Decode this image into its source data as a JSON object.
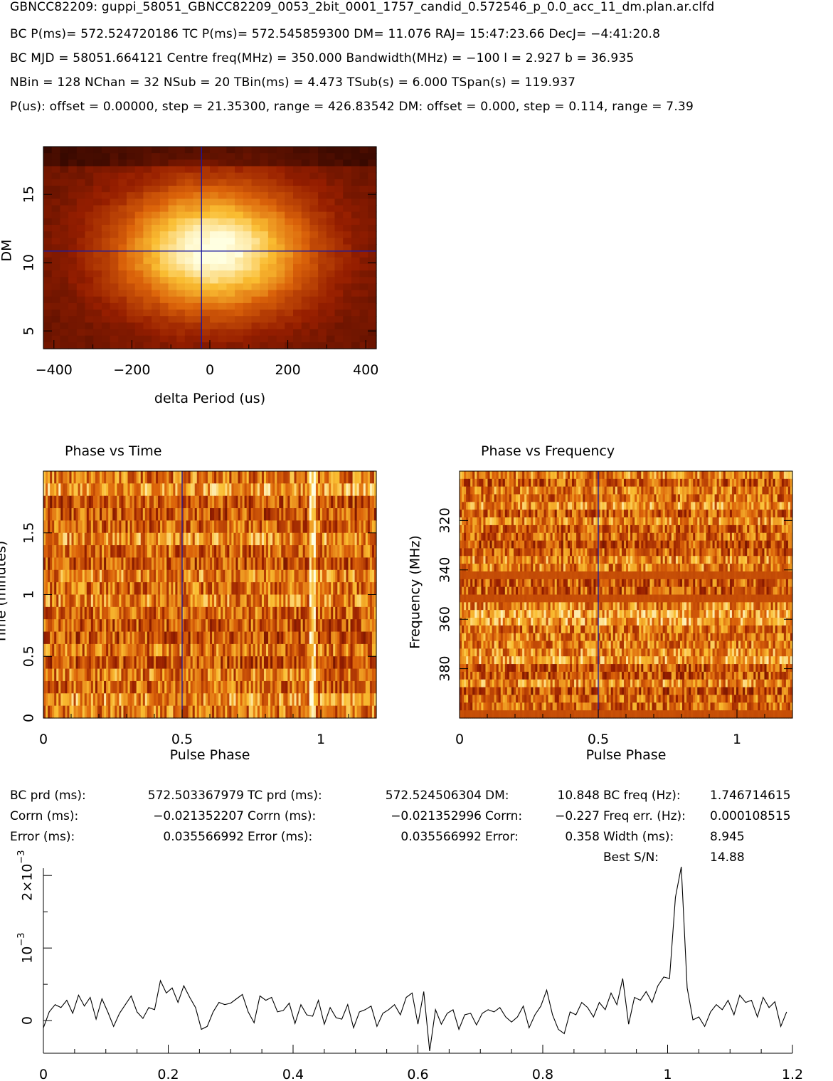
{
  "header": {
    "file": "GBNCC82209: guppi_58051_GBNCC82209_0053_2bit_0001_1757_candid_0.572546_p_0.0_acc_11_dm.plan.ar.clfd",
    "line1": "BC P(ms)= 572.524720186 TC P(ms)= 572.545859300 DM= 11.076 RAJ= 15:47:23.66 DecJ= −4:41:20.8",
    "line2": "BC MJD = 58051.664121 Centre freq(MHz) = 350.000 Bandwidth(MHz) = −100 l = 2.927 b = 36.935",
    "line3": "NBin = 128 NChan = 32 NSub = 20 TBin(ms) = 4.473 TSub(s) = 6.000 TSpan(s) = 119.937",
    "line4": "P(us): offset = 0.00000, step = 21.35300, range = 426.83542 DM: offset = 0.000, step = 0.114, range = 7.39"
  },
  "colors": {
    "heat_dark": "#3a0a00",
    "heat_mid": "#d2570a",
    "heat_bright": "#ffffe0",
    "crosshair": "#1a1aa0",
    "line": "#000000"
  },
  "stats": {
    "col1": [
      {
        "label": "BC prd (ms):",
        "value": "572.503367979"
      },
      {
        "label": "Corrn (ms):",
        "value": "−0.021352207"
      },
      {
        "label": "Error (ms):",
        "value": "0.035566992"
      }
    ],
    "col2": [
      {
        "label": "TC prd (ms):",
        "value": "572.524506304"
      },
      {
        "label": "Corrn (ms):",
        "value": "−0.021352996"
      },
      {
        "label": "Error (ms):",
        "value": "0.035566992"
      }
    ],
    "col3": [
      {
        "label": "DM:",
        "value": "10.848"
      },
      {
        "label": "Corrn:",
        "value": "−0.227"
      },
      {
        "label": "Error:",
        "value": "0.358"
      }
    ],
    "col4": [
      {
        "label": "BC freq (Hz):",
        "value": "1.746714615"
      },
      {
        "label": "Freq err. (Hz):",
        "value": "0.000108515"
      },
      {
        "label": "Width (ms):",
        "value": "8.945"
      },
      {
        "label": "Best S/N:",
        "value": "14.88"
      }
    ]
  },
  "chart_data": [
    {
      "type": "heatmap",
      "title": "",
      "xlabel": "delta Period (us)",
      "ylabel": "DM",
      "xlim": [
        -427,
        427
      ],
      "ylim": [
        3.7,
        18.5
      ],
      "xticks": [
        "−400",
        "−200",
        "0",
        "200",
        "400"
      ],
      "yticks": [
        "5",
        "10",
        "15"
      ],
      "crosshair": {
        "x": -21.4,
        "y": 10.85
      },
      "peak": {
        "x": 10,
        "y": 10.9
      }
    },
    {
      "type": "heatmap",
      "title": "Phase vs Time",
      "xlabel": "Pulse Phase",
      "ylabel": "Time (minutes)",
      "xlim": [
        0,
        1.2
      ],
      "ylim": [
        0,
        2
      ],
      "xticks": [
        "0",
        "0.5",
        "1"
      ],
      "yticks": [
        "0",
        "0.5",
        "1",
        "1.5"
      ],
      "marker_phase": 0.5,
      "pulse_phase": 0.97
    },
    {
      "type": "heatmap",
      "title": "Phase vs Frequency",
      "xlabel": "Pulse Phase",
      "ylabel": "Frequency (MHz)",
      "xlim": [
        0,
        1.2
      ],
      "ylim": [
        400,
        300
      ],
      "xticks": [
        "0",
        "0.5",
        "1"
      ],
      "yticks": [
        "320",
        "340",
        "360",
        "380"
      ],
      "marker_phase": 0.5
    },
    {
      "type": "line",
      "title": "",
      "xlabel": "",
      "ylabel": "",
      "xlim": [
        0,
        1.2
      ],
      "ylim": [
        -0.00045,
        0.0021
      ],
      "xticks": [
        "0",
        "0.2",
        "0.4",
        "0.6",
        "0.8",
        "1",
        "1.2"
      ],
      "yticks": [
        {
          "value": 0,
          "label": "0"
        },
        {
          "value": 0.001,
          "label": "10",
          "exp": "−3"
        },
        {
          "value": 0.002,
          "label": "2×10",
          "exp": "−3"
        }
      ],
      "x": [
        0.0,
        0.0094,
        0.0188,
        0.0281,
        0.0375,
        0.0469,
        0.0563,
        0.0656,
        0.075,
        0.0844,
        0.0938,
        0.1031,
        0.1125,
        0.1219,
        0.1313,
        0.1406,
        0.15,
        0.1594,
        0.1688,
        0.1781,
        0.1875,
        0.1969,
        0.2063,
        0.2156,
        0.225,
        0.2344,
        0.2438,
        0.2531,
        0.2625,
        0.2719,
        0.2813,
        0.2906,
        0.3,
        0.3094,
        0.3188,
        0.3281,
        0.3375,
        0.3469,
        0.3563,
        0.3656,
        0.375,
        0.3844,
        0.3938,
        0.4031,
        0.4125,
        0.4219,
        0.4313,
        0.4406,
        0.45,
        0.4594,
        0.4688,
        0.4781,
        0.4875,
        0.4969,
        0.5063,
        0.5156,
        0.525,
        0.5344,
        0.5438,
        0.5531,
        0.5625,
        0.5719,
        0.5813,
        0.5906,
        0.6,
        0.6094,
        0.6188,
        0.6281,
        0.6375,
        0.6469,
        0.6563,
        0.6656,
        0.675,
        0.6844,
        0.6938,
        0.7031,
        0.7125,
        0.7219,
        0.7313,
        0.7406,
        0.75,
        0.7594,
        0.7688,
        0.7781,
        0.7875,
        0.7969,
        0.8063,
        0.8156,
        0.825,
        0.8344,
        0.8438,
        0.8531,
        0.8625,
        0.8719,
        0.8813,
        0.8906,
        0.9,
        0.9094,
        0.9188,
        0.9281,
        0.9375,
        0.9469,
        0.9563,
        0.9656,
        0.975,
        0.9844,
        0.9938,
        1.0031,
        1.0125,
        1.0219,
        1.0313,
        1.0406,
        1.05,
        1.0594,
        1.0688,
        1.0781,
        1.0875,
        1.0969,
        1.1063,
        1.1156,
        1.125,
        1.1344,
        1.1438,
        1.1531,
        1.1625,
        1.1719,
        1.1813,
        1.1906
      ],
      "y": [
        -0.0001,
        0.00012,
        0.00022,
        0.00018,
        0.00028,
        0.0001,
        0.00035,
        0.0002,
        0.00032,
        2e-05,
        0.0003,
        0.00012,
        -8e-05,
        0.0001,
        0.00022,
        0.00034,
        0.00012,
        3e-05,
        0.00018,
        0.00015,
        0.00055,
        0.00038,
        0.00045,
        0.00025,
        0.00048,
        0.00032,
        0.00018,
        -0.00012,
        -8e-05,
        0.00012,
        0.00025,
        0.00022,
        0.00024,
        0.0003,
        0.00036,
        0.00012,
        -3e-05,
        0.00034,
        0.00028,
        0.00032,
        0.00012,
        0.00014,
        0.00024,
        -4e-05,
        0.00022,
        8e-05,
        6e-05,
        0.00028,
        -5e-05,
        0.00018,
        4e-05,
        2e-05,
        0.00022,
        -0.0001,
        0.00012,
        0.00015,
        0.0002,
        -8e-05,
        0.0001,
        0.00015,
        0.00022,
        8e-05,
        0.00032,
        0.00038,
        -5e-05,
        0.0004,
        -0.00042,
        0.00015,
        -5e-05,
        0.0001,
        0.00015,
        -0.00012,
        8e-05,
        0.0001,
        -6e-05,
        0.0001,
        0.00015,
        0.00012,
        0.00018,
        5e-05,
        -2e-05,
        5e-05,
        0.0002,
        -0.0001,
        8e-05,
        0.0002,
        0.00042,
        8e-05,
        -0.00012,
        -0.00018,
        0.00012,
        8e-05,
        0.00025,
        0.00018,
        5e-05,
        0.00025,
        0.00015,
        0.00038,
        0.00022,
        0.00058,
        -5e-05,
        0.00032,
        0.00028,
        0.0004,
        0.00025,
        0.00048,
        0.0006,
        0.00058,
        0.0017,
        0.00212,
        0.00045,
        1e-05,
        5e-05,
        -8e-05,
        0.00012,
        0.00022,
        0.00015,
        0.00028,
        8e-05,
        0.00035,
        0.00025,
        0.00028,
        5e-05,
        0.00032,
        0.00018,
        0.00026,
        -8e-05,
        0.00012
      ],
      "y_full": true
    }
  ]
}
